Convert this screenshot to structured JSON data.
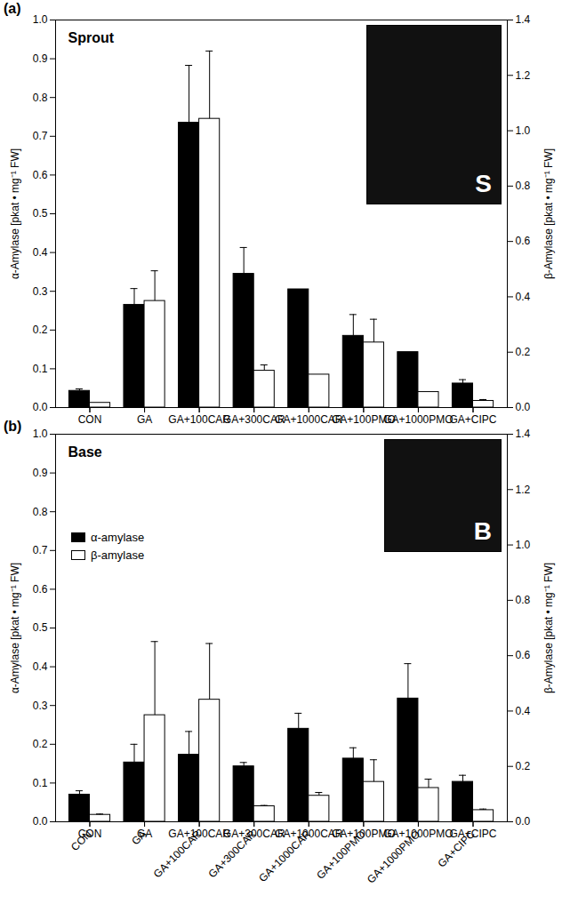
{
  "chart_data": [
    {
      "type": "bar",
      "panel_label": "(a)",
      "title": "Sprout",
      "inset_label": "S",
      "categories": [
        "CON",
        "GA",
        "GA+100CAR",
        "GA+300CAR",
        "GA+1000CAR",
        "GA+100PMO",
        "GA+1000PMO",
        "GA+CIPC"
      ],
      "ylabel": "α-Amylase [pkat • mg⁻¹ FW]",
      "y2label": "β-Amylase [pkat • mg⁻¹ FW]",
      "ylim": [
        0,
        1
      ],
      "yticks": [
        {
          "value": 0,
          "label": "0.0"
        },
        0.1,
        0.2,
        0.3,
        0.4,
        0.5,
        0.6,
        0.7,
        0.8,
        0.9,
        {
          "value": 1,
          "label": "1.0"
        }
      ],
      "y2lim": [
        0,
        1.4
      ],
      "y2ticks": [
        {
          "value": 0,
          "label": "0.0"
        },
        0.2,
        0.4,
        0.6,
        0.8,
        {
          "value": 1,
          "label": "1.0"
        },
        1.2,
        1.4
      ],
      "tick_labels": "y",
      "series": [
        {
          "name": "α-amylase",
          "color": "#000000",
          "values": [
            0.043,
            0.265,
            0.735,
            0.345,
            0.305,
            0.185,
            0.143,
            0.062
          ],
          "errors": [
            0.005,
            0.042,
            0.148,
            0.068,
            null,
            0.055,
            null,
            0.01
          ]
        },
        {
          "name": "β-amylase",
          "color": "#ffffff",
          "axis": "y2",
          "values": [
            0.017,
            0.385,
            1.043,
            0.133,
            0.119,
            0.235,
            0.056,
            0.024
          ],
          "errors": [
            null,
            0.109,
            0.245,
            0.021,
            null,
            0.084,
            null,
            0.005
          ]
        }
      ]
    },
    {
      "type": "bar",
      "panel_label": "(b)",
      "title": "Base",
      "inset_label": "B",
      "categories": [
        "CON",
        "GA",
        "GA+100CAR",
        "GA+300CAR",
        "GA+1000CAR",
        "GA+100PMO",
        "GA+1000PMO",
        "GA+CIPC"
      ],
      "ylabel": "α-Amylase [pkat • mg⁻¹ FW]",
      "y2label": "β-Amylase [pkat • mg⁻¹ FW]",
      "ylim": [
        0,
        1
      ],
      "yticks": [
        {
          "value": 0,
          "label": "0.0"
        },
        0.1,
        0.2,
        0.3,
        0.4,
        0.5,
        0.6,
        0.7,
        0.8,
        0.9,
        {
          "value": 1,
          "label": "1.0"
        }
      ],
      "y2lim": [
        0,
        1.4
      ],
      "y2ticks": [
        {
          "value": 0,
          "label": "0.0"
        },
        0.2,
        0.4,
        0.6,
        0.8,
        {
          "value": 1,
          "label": "1.0"
        },
        1.2,
        1.4
      ],
      "legend": "upper left",
      "series": [
        {
          "name": "α-amylase",
          "color": "#000000",
          "values": [
            0.07,
            0.153,
            0.173,
            0.143,
            0.24,
            0.163,
            0.318,
            0.103
          ],
          "errors": [
            0.01,
            0.047,
            0.06,
            0.01,
            0.04,
            0.028,
            0.09,
            0.017
          ]
        },
        {
          "name": "β-amylase",
          "color": "#ffffff",
          "axis": "y2",
          "values": [
            0.025,
            0.385,
            0.441,
            0.056,
            0.094,
            0.144,
            0.122,
            0.042
          ],
          "errors": [
            0.003,
            0.266,
            0.203,
            0.003,
            0.012,
            0.08,
            0.032,
            0.004
          ]
        }
      ]
    }
  ]
}
